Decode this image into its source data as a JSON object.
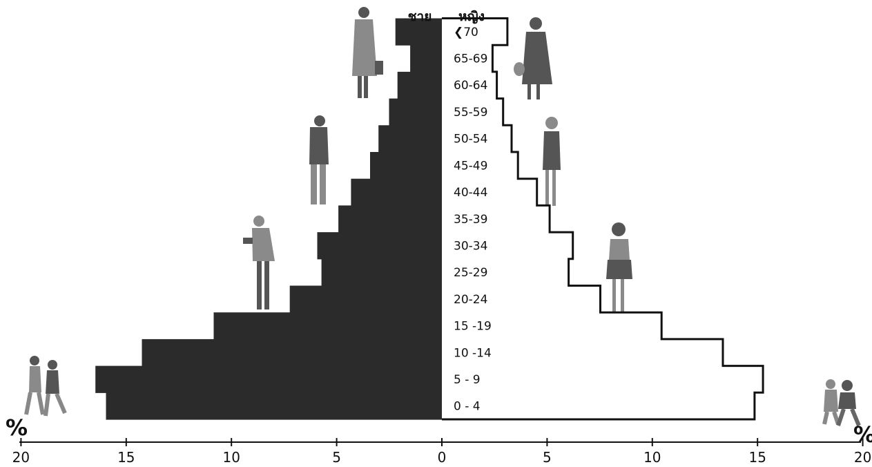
{
  "chart_data": {
    "type": "bar",
    "subtype": "population-pyramid",
    "orientation": "horizontal",
    "title": "",
    "sex_labels": {
      "male": "ชาย",
      "female": "หญิง"
    },
    "categories": [
      "0 - 4",
      "5 - 9",
      "10 -14",
      "15 -19",
      "20-24",
      "25-29",
      "30-34",
      "35-39",
      "40-44",
      "45-49",
      "50-54",
      "55-59",
      "60-64",
      "65-69",
      "<70"
    ],
    "category_display": [
      "0 - 4",
      "5 - 9",
      "10 -14",
      "15 -19",
      "20-24",
      "25-29",
      "30-34",
      "35-39",
      "40-44",
      "45-49",
      "50-54",
      "55-59",
      "60-64",
      "65-69",
      "❮70"
    ],
    "series": [
      {
        "name": "ชาย",
        "side": "left",
        "fill": "#2b2b2b",
        "values": [
          15.9,
          16.4,
          14.2,
          10.8,
          7.2,
          5.7,
          5.9,
          4.9,
          4.3,
          3.4,
          3.0,
          2.5,
          2.1,
          1.5,
          2.2
        ]
      },
      {
        "name": "หญิง",
        "side": "right",
        "fill": "#ffffff",
        "values": [
          14.8,
          15.2,
          13.3,
          10.4,
          7.5,
          6.0,
          6.2,
          5.1,
          4.5,
          3.6,
          3.3,
          2.9,
          2.6,
          2.4,
          3.1
        ]
      }
    ],
    "x_axis": {
      "ticks": [
        20,
        15,
        10,
        5,
        0,
        5,
        10,
        15,
        20
      ],
      "tick_values": [
        -20,
        -15,
        -10,
        -5,
        0,
        5,
        10,
        15,
        20
      ],
      "unit_symbol": "%",
      "range": [
        -20,
        20
      ]
    },
    "colors": {
      "male_fill": "#2b2b2b",
      "female_outline": "#111111",
      "axis": "#111111"
    }
  }
}
